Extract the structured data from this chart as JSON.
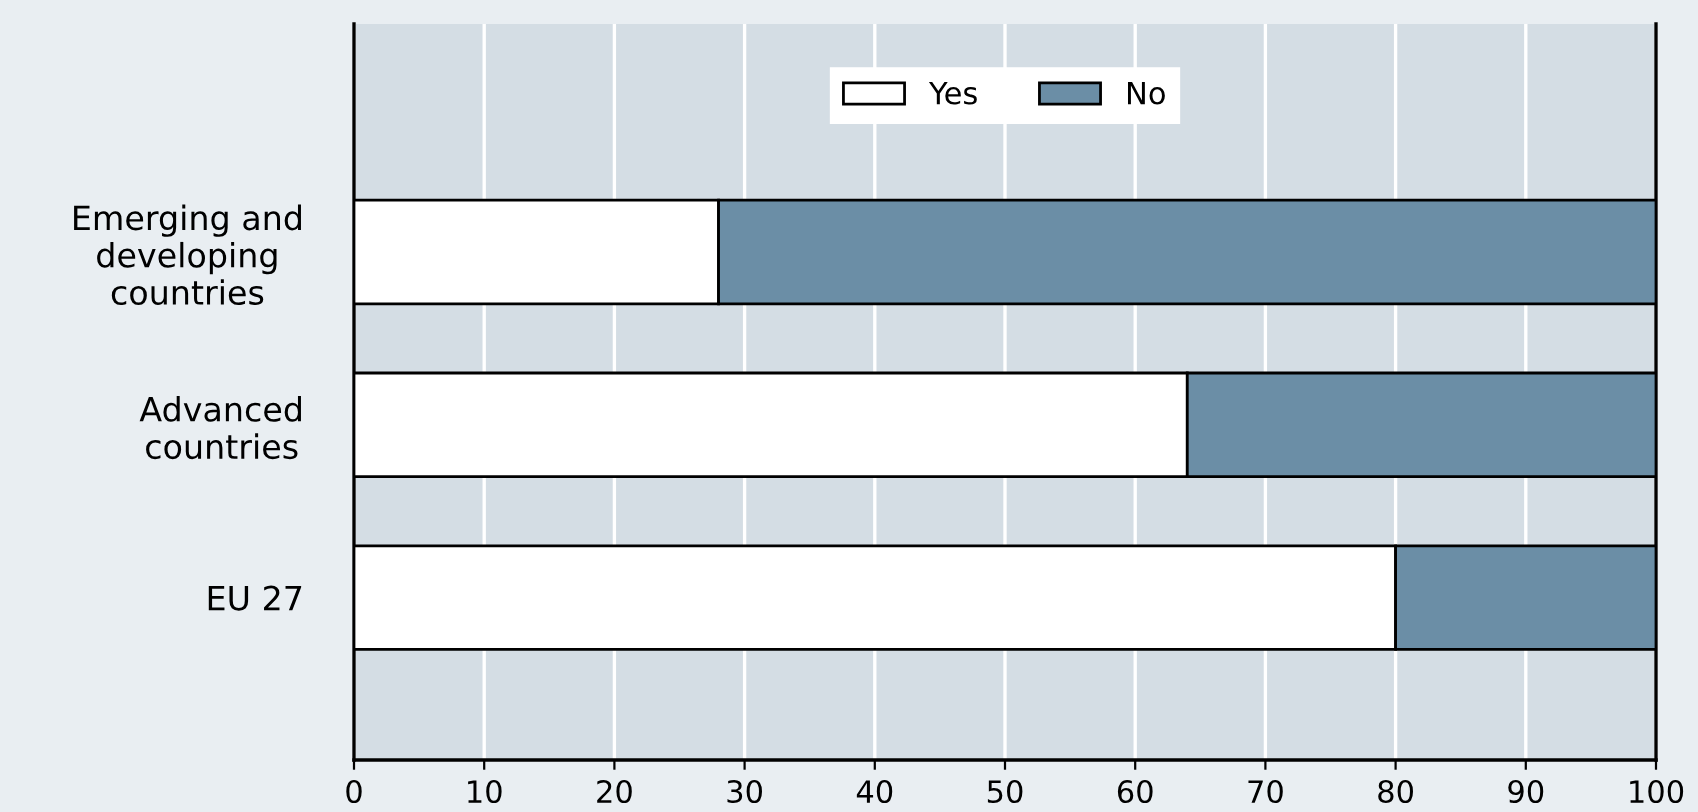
{
  "chart_data": {
    "type": "bar",
    "orientation": "horizontal",
    "stacked": true,
    "categories": [
      "Emerging and\ndeveloping\ncountries",
      "Advanced\ncountries",
      "EU 27"
    ],
    "series": [
      {
        "name": "Yes",
        "color": "#ffffff",
        "values": [
          28,
          64,
          80
        ]
      },
      {
        "name": "No",
        "color": "#6b8ea6",
        "values": [
          72,
          36,
          20
        ]
      }
    ],
    "xlim": [
      0,
      100
    ],
    "xticks": [
      0,
      10,
      20,
      30,
      40,
      50,
      60,
      70,
      80,
      90,
      100
    ],
    "grid": "x",
    "legend": "top"
  }
}
